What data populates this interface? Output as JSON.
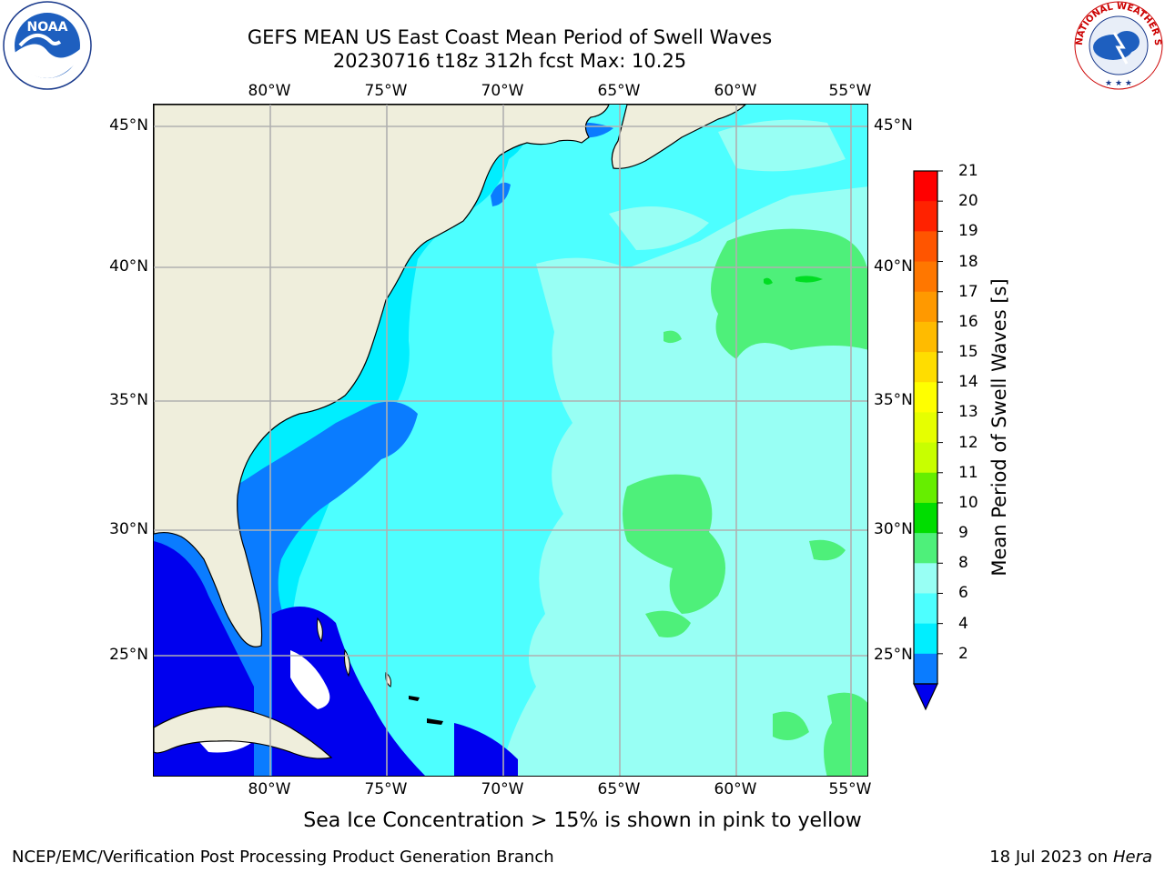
{
  "header": {
    "title": "GEFS MEAN US East Coast Mean Period of Swell Waves",
    "subtitle": "20230716 t18z 312h fcst   Max: 10.25"
  },
  "map": {
    "lon_labels": [
      "80°W",
      "75°W",
      "70°W",
      "65°W",
      "60°W",
      "55°W"
    ],
    "lat_labels": [
      "45°N",
      "40°N",
      "35°N",
      "30°N",
      "25°N"
    ],
    "colors": {
      "land": "#efeedc",
      "ocean_base": "#4dffff",
      "band_2_4": "#0a7cff",
      "band_4_6": "#00eeff",
      "band_6_8": "#4dffff",
      "band_8_9": "#98fff4",
      "band_9_10": "#4ef07a",
      "band_10_11": "#00dd22",
      "below_2": "#0000ee",
      "grid": "#b0b0b0"
    }
  },
  "colorbar": {
    "label": "Mean Period of Swell Waves [s]",
    "ticks": [
      "21",
      "20",
      "19",
      "18",
      "17",
      "16",
      "15",
      "14",
      "13",
      "12",
      "11",
      "10",
      "9",
      "8",
      "6",
      "4",
      "2"
    ],
    "colors": [
      "#ff0000",
      "#ff2200",
      "#ff5500",
      "#ff7700",
      "#ff9900",
      "#ffbb00",
      "#ffdd00",
      "#ffff00",
      "#e6ff00",
      "#c8ff00",
      "#66ee00",
      "#00dd00",
      "#4ef07a",
      "#98fff4",
      "#4dffff",
      "#00eeff",
      "#0a7cff"
    ],
    "extend_color": "#0000ee"
  },
  "footer": {
    "note": "Sea Ice Concentration > 15% is shown in pink to yellow",
    "credit": "NCEP/EMC/Verification Post Processing Product Generation Branch",
    "date": "18 Jul 2023 on ",
    "host": "Hera"
  },
  "logos": {
    "noaa_text": "NOAA",
    "nws_text": "NATIONAL WEATHER SERVICE"
  }
}
